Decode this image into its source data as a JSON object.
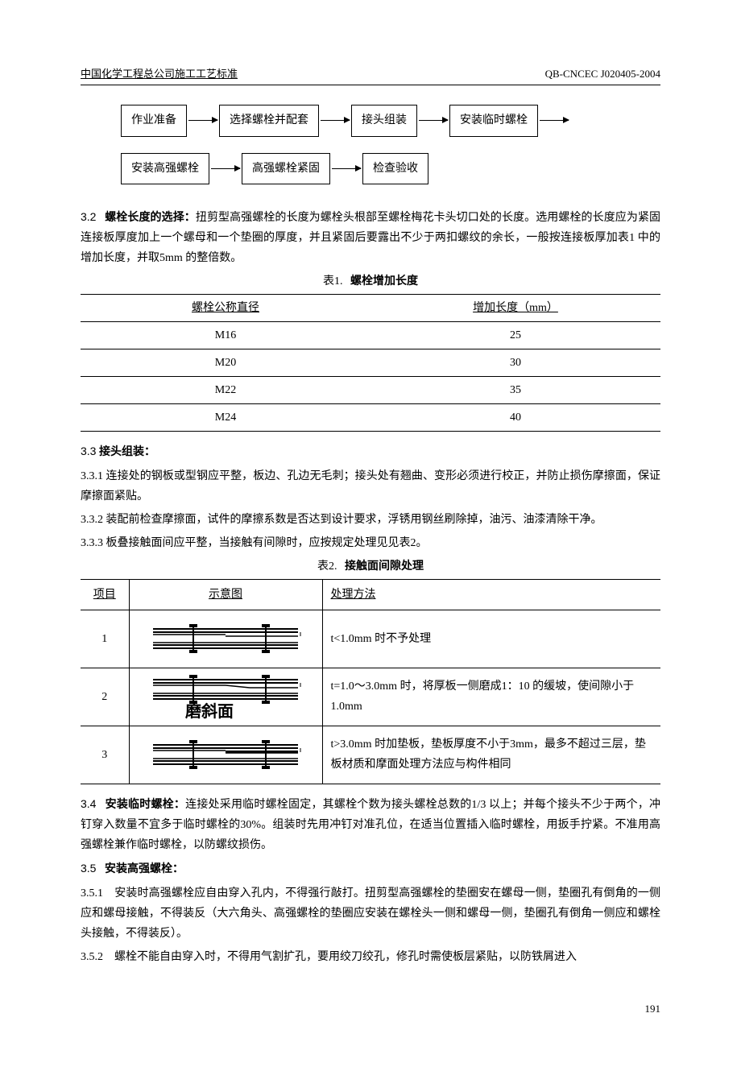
{
  "header": {
    "left": "中国化学工程总公司施工工艺标准",
    "right": "QB-CNCEC J020405-2004"
  },
  "flowchart": {
    "row1": [
      "作业准备",
      "选择螺栓并配套",
      "接头组装",
      "安装临时螺栓"
    ],
    "row2": [
      "安装高强螺栓",
      "高强螺栓紧固",
      "检查验收"
    ]
  },
  "section_3_2": {
    "num": "3.2",
    "title": "螺栓长度的选择：",
    "text": "扭剪型高强螺栓的长度为螺栓头根部至螺栓梅花卡头切口处的长度。选用螺栓的长度应为紧固连接板厚度加上一个螺母和一个垫圈的厚度，并且紧固后要露出不少于两扣螺纹的余长，一般按连接板厚加表1 中的增加长度，并取5mm 的整倍数。"
  },
  "table1": {
    "caption_num": "表1.",
    "caption_name": "螺栓增加长度",
    "headers": [
      "螺栓公称直径",
      "增加长度（mm）"
    ],
    "rows": [
      [
        "M16",
        "25"
      ],
      [
        "M20",
        "30"
      ],
      [
        "M22",
        "35"
      ],
      [
        "M24",
        "40"
      ]
    ]
  },
  "section_3_3": {
    "num": "3.3",
    "title": "接头组装：",
    "items": [
      {
        "num": "3.3.1",
        "text": "连接处的钢板或型钢应平整，板边、孔边无毛刺；接头处有翘曲、变形必须进行校正，并防止损伤摩擦面，保证摩擦面紧贴。"
      },
      {
        "num": "3.3.2",
        "text": "装配前检查摩擦面，试件的摩擦系数是否达到设计要求，浮锈用钢丝刷除掉，油污、油漆清除干净。"
      },
      {
        "num": "3.3.3",
        "text": "板叠接触面间应平整，当接触有间隙时，应按规定处理见见表2。"
      }
    ]
  },
  "table2": {
    "caption_num": "表2.",
    "caption_name": "接触面间隙处理",
    "headers": [
      "项目",
      "示意图",
      "处理方法"
    ],
    "rows": [
      {
        "num": "1",
        "diagram_label": "",
        "method": "t<1.0mm 时不予处理"
      },
      {
        "num": "2",
        "diagram_label": "磨斜面",
        "method": "t=1.0～3.0mm 时，将厚板一侧磨成1：10 的缓坡，使间隙小于1.0mm"
      },
      {
        "num": "3",
        "diagram_label": "",
        "method": "t>3.0mm 时加垫板，垫板厚度不小于3mm，最多不超过三层，垫板材质和摩面处理方法应与构件相同"
      }
    ]
  },
  "section_3_4": {
    "num": "3.4",
    "title": "安装临时螺栓：",
    "text": "连接处采用临时螺栓固定，其螺栓个数为接头螺栓总数的1/3 以上；并每个接头不少于两个，冲钉穿入数量不宜多于临时螺栓的30%。组装时先用冲钉对准孔位，在适当位置插入临时螺栓，用扳手拧紧。不准用高强螺栓兼作临时螺栓，以防螺纹损伤。"
  },
  "section_3_5": {
    "num": "3.5",
    "title": "安装高强螺栓：",
    "items": [
      {
        "num": "3.5.1",
        "text": "安装时高强螺栓应自由穿入孔内，不得强行敲打。扭剪型高强螺栓的垫圈安在螺母一侧，垫圈孔有倒角的一侧应和螺母接触，不得装反（大六角头、高强螺栓的垫圈应安装在螺栓头一侧和螺母一侧，垫圈孔有倒角一侧应和螺栓头接触，不得装反）。"
      },
      {
        "num": "3.5.2",
        "text": "螺栓不能自由穿入时，不得用气割扩孔，要用绞刀绞孔，修孔时需使板层紧贴，以防铁屑进入"
      }
    ]
  },
  "page_number": "191"
}
